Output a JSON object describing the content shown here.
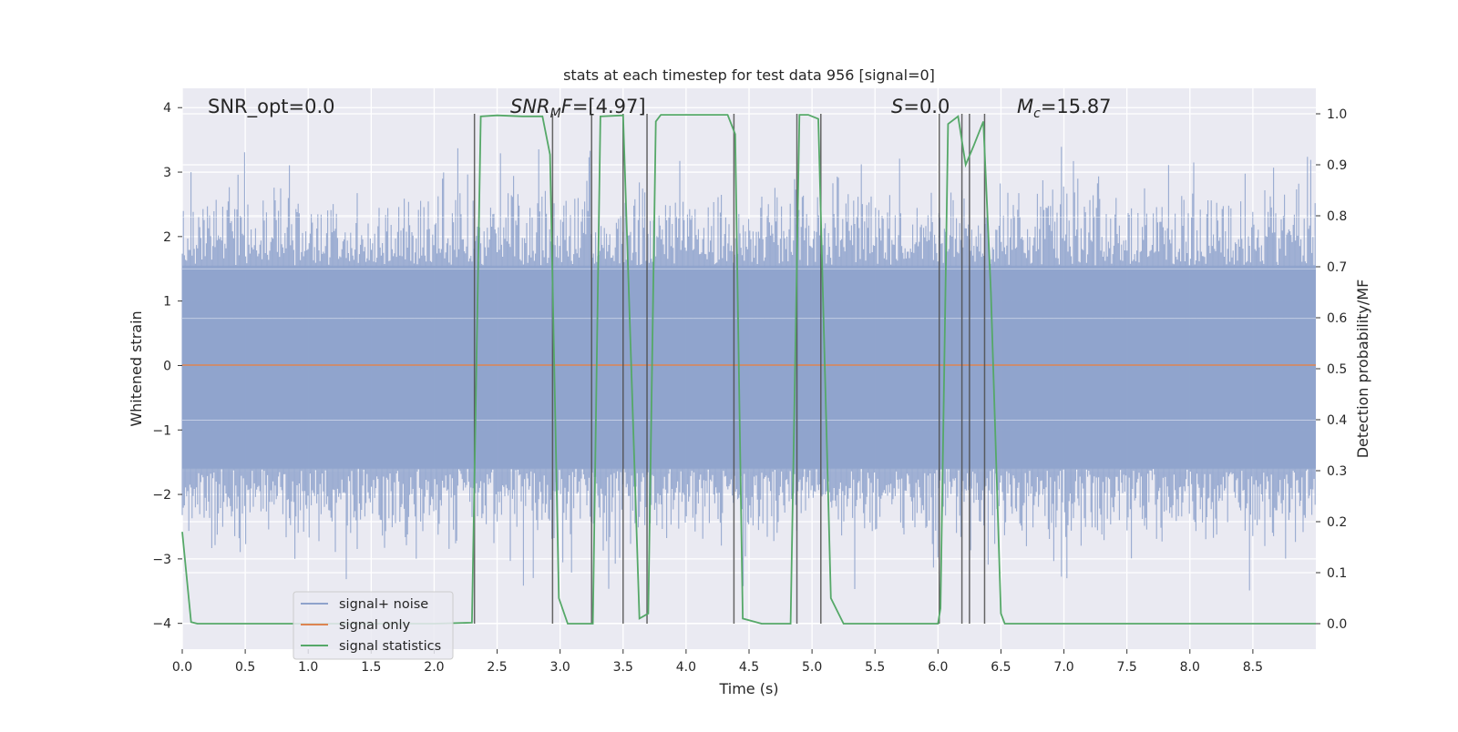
{
  "chart_data": {
    "type": "line",
    "title": "stats at each timestep for test data 956 [signal=0]",
    "xlabel": "Time (s)",
    "ylabel_left": "Whitened strain",
    "ylabel_right": "Detection probability/MF",
    "xlim": [
      0,
      9.0
    ],
    "ylim_left": [
      -4.4,
      4.3
    ],
    "ylim_right": [
      -0.05,
      1.05
    ],
    "grid": true,
    "legend_placement": "lower-left",
    "x_ticks": [
      "0.0",
      "0.5",
      "1.0",
      "1.5",
      "2.0",
      "2.5",
      "3.0",
      "3.5",
      "4.0",
      "4.5",
      "5.0",
      "5.5",
      "6.0",
      "6.5",
      "7.0",
      "7.5",
      "8.0",
      "8.5"
    ],
    "y_ticks_left": [
      "4",
      "3",
      "2",
      "1",
      "0",
      "−1",
      "−2",
      "−3",
      "−4"
    ],
    "y_ticks_right": [
      "1.0",
      "0.9",
      "0.8",
      "0.7",
      "0.6",
      "0.5",
      "0.4",
      "0.3",
      "0.2",
      "0.1",
      "0.0"
    ],
    "annotations": {
      "snr_opt": "SNR_opt=0.0",
      "snr_mf_main": "SNR",
      "snr_mf_sub": "M",
      "snr_mf_tail": "F",
      "snr_mf_value": "=[4.97]",
      "s_var": "S",
      "s_value": "=0.0",
      "mc_var": "M",
      "mc_sub": "c",
      "mc_value": "=15.87"
    },
    "series": [
      {
        "name": "signal+ noise",
        "color": "#8fa3cc",
        "description_level": "noise band approx ±1.6 with spikes to ±3.5"
      },
      {
        "name": "signal only",
        "color": "#dd8452",
        "values_constant": 0
      },
      {
        "name": "signal statistics",
        "color": "#55a868",
        "x": [
          0.0,
          0.07,
          0.12,
          0.5,
          1.0,
          1.5,
          2.0,
          2.3,
          2.37,
          2.5,
          2.7,
          2.86,
          2.92,
          2.99,
          3.06,
          3.18,
          3.26,
          3.32,
          3.5,
          3.63,
          3.7,
          3.76,
          3.8,
          4.0,
          4.2,
          4.33,
          4.39,
          4.45,
          4.6,
          4.83,
          4.9,
          4.97,
          5.05,
          5.15,
          5.25,
          5.5,
          6.0,
          6.02,
          6.08,
          6.16,
          6.22,
          6.28,
          6.36,
          6.42,
          6.5,
          6.53,
          7.0,
          8.0,
          9.0
        ],
        "y": [
          0.18,
          0.003,
          0.0,
          0.0,
          0.0,
          0.0,
          0.0,
          0.002,
          0.995,
          0.997,
          0.995,
          0.995,
          0.92,
          0.05,
          0.0,
          0.0,
          0.0,
          0.995,
          0.997,
          0.01,
          0.02,
          0.985,
          0.998,
          0.998,
          0.998,
          0.998,
          0.96,
          0.01,
          0.0,
          0.0,
          0.998,
          0.998,
          0.99,
          0.05,
          0.0,
          0.0,
          0.0,
          0.03,
          0.98,
          0.995,
          0.9,
          0.935,
          0.985,
          0.65,
          0.02,
          0.0,
          0.0,
          0.0,
          0.0
        ]
      }
    ],
    "vertical_markers": [
      2.32,
      2.94,
      3.25,
      3.5,
      3.69,
      4.38,
      4.88,
      5.07,
      6.01,
      6.19,
      6.25,
      6.37
    ]
  },
  "legend": {
    "items": [
      {
        "label": "signal+ noise",
        "color": "#8fa3cc"
      },
      {
        "label": "signal only",
        "color": "#dd8452"
      },
      {
        "label": "signal statistics",
        "color": "#55a868"
      }
    ]
  },
  "colors": {
    "plot_bg": "#eaeaf2",
    "grid": "#ffffff",
    "noise": "#8fa3cc",
    "signal_only": "#dd8452",
    "stats": "#55a868",
    "markers": "#4c4c4c"
  }
}
